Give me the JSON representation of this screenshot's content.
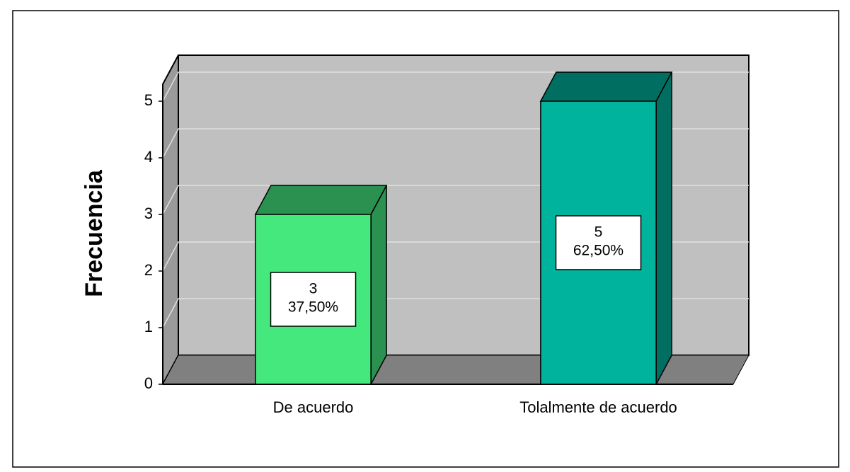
{
  "chart_data": {
    "type": "bar3d",
    "y_label": "Frecuencia",
    "categories": [
      "De acuerdo",
      "Tolalmente de acuerdo"
    ],
    "values": [
      3,
      5
    ],
    "percentages": [
      37.5,
      62.5
    ],
    "percentage_labels": [
      "37,50%",
      "62,50%"
    ],
    "colors": [
      "#44e87d",
      "#00b39c"
    ],
    "shade_colors": [
      "#2a9150",
      "#006e60"
    ],
    "ylim": [
      0,
      5.3
    ],
    "yticks": [
      0,
      1,
      2,
      3,
      4,
      5
    ],
    "grid": true
  }
}
